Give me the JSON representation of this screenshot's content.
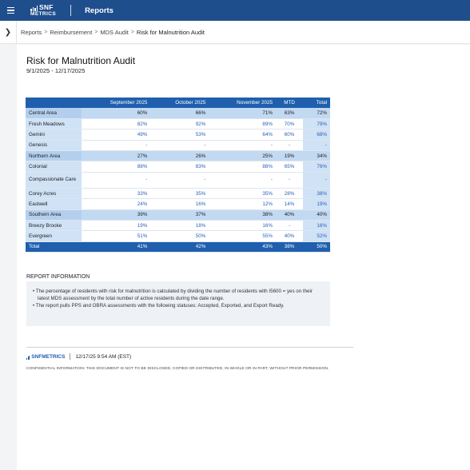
{
  "header": {
    "logo_top": "SNF",
    "logo_bottom": "METRICS",
    "title": "Reports"
  },
  "breadcrumb": [
    "Reports",
    "Reimbursement",
    "MDS Audit",
    "Risk for Malnutrition Audit"
  ],
  "report": {
    "title": "Risk for Malnutrition Audit",
    "date_range": "9/1/2025 - 12/17/2025"
  },
  "table": {
    "columns": [
      "",
      "September 2025",
      "October 2025",
      "November 2025",
      "MTD",
      "Total"
    ],
    "rows": [
      {
        "name": "Central Area",
        "type": "area",
        "values": [
          "60%",
          "66%",
          "71%",
          "63%",
          "72%"
        ]
      },
      {
        "name": "Fresh Meadows",
        "type": "facility",
        "values": [
          "82%",
          "92%",
          "89%",
          "70%",
          "79%"
        ]
      },
      {
        "name": "Gemini",
        "type": "facility",
        "values": [
          "49%",
          "53%",
          "64%",
          "60%",
          "68%"
        ]
      },
      {
        "name": "Genesis",
        "type": "facility",
        "values": [
          "-",
          "-",
          "-",
          "-",
          "-"
        ]
      },
      {
        "name": "Northern Area",
        "type": "area",
        "values": [
          "27%",
          "26%",
          "25%",
          "19%",
          "34%"
        ]
      },
      {
        "name": "Colonial",
        "type": "facility",
        "values": [
          "88%",
          "83%",
          "88%",
          "65%",
          "76%"
        ]
      },
      {
        "name": "Compassionate Care",
        "type": "facility-tall",
        "values": [
          "-",
          "-",
          "-",
          "-",
          "-"
        ]
      },
      {
        "name": "Corey Acres",
        "type": "facility",
        "values": [
          "33%",
          "35%",
          "35%",
          "28%",
          "38%"
        ]
      },
      {
        "name": "Eastwell",
        "type": "facility",
        "values": [
          "24%",
          "16%",
          "12%",
          "14%",
          "19%"
        ]
      },
      {
        "name": "Southern Area",
        "type": "area",
        "values": [
          "39%",
          "37%",
          "38%",
          "40%",
          "40%"
        ]
      },
      {
        "name": "Breezy Brooke",
        "type": "facility",
        "values": [
          "19%",
          "18%",
          "16%",
          "-",
          "16%"
        ]
      },
      {
        "name": "Evergreen",
        "type": "facility",
        "values": [
          "51%",
          "50%",
          "55%",
          "40%",
          "52%"
        ]
      }
    ],
    "total": {
      "name": "Total",
      "values": [
        "41%",
        "42%",
        "43%",
        "38%",
        "50%"
      ]
    }
  },
  "info": {
    "title": "REPORT INFORMATION",
    "bullets": [
      "•  The percentage of residents with risk for malnutrition is calculated by dividing the number of residents with I5600 = yes on their latest MDS assessment by the total number of active residents during the date range.",
      "•  The report pulls PPS and OBRA assessments with the following statuses: Accepted, Exported, and Export Ready."
    ]
  },
  "footer": {
    "logo": "SNFMETRICS",
    "timestamp": "12/17/25 9:54 AM (EST)",
    "confidential": "CONFIDENTIAL INFORMATION: THIS DOCUMENT IS NOT TO BE DISCLOSED, COPIED OR DISTRIBUTED, IN WHOLE OR IN PART, WITHOUT PRIOR PERMISSION."
  }
}
